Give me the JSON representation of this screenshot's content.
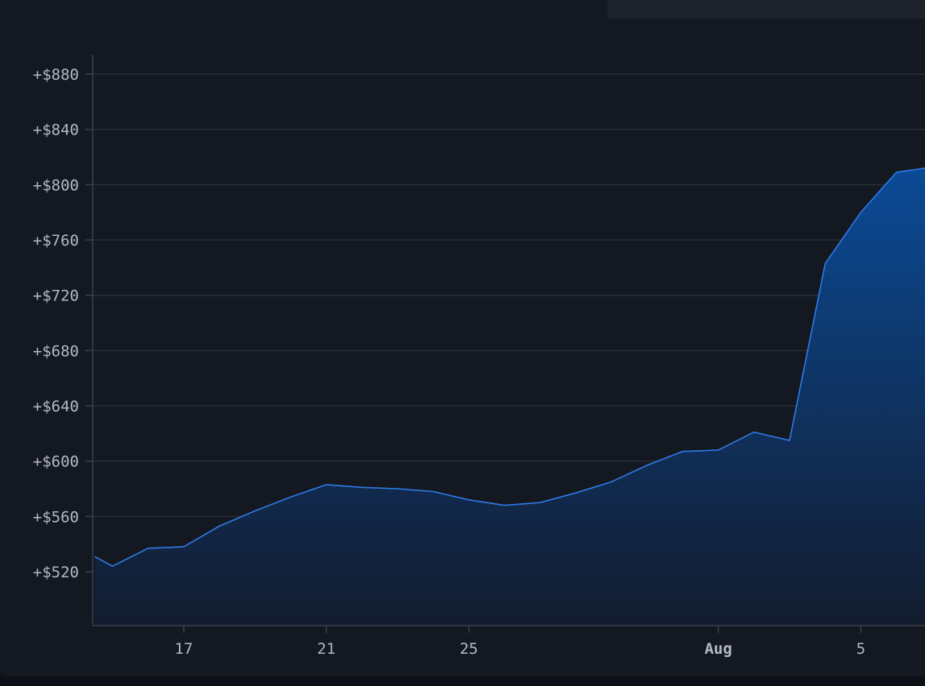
{
  "chart_data": {
    "type": "area",
    "title": "",
    "xlabel": "",
    "ylabel": "",
    "x_tick_labels": [
      {
        "label": "17",
        "x": "Jul 17",
        "bold": false
      },
      {
        "label": "21",
        "x": "Jul 21",
        "bold": false
      },
      {
        "label": "25",
        "x": "Jul 25",
        "bold": false
      },
      {
        "label": "Aug",
        "x": "Aug 1",
        "bold": true
      },
      {
        "label": "5",
        "x": "Aug 5",
        "bold": false
      }
    ],
    "y_tick_labels": [
      {
        "label": "+$520",
        "value": 520
      },
      {
        "label": "+$560",
        "value": 560
      },
      {
        "label": "+$600",
        "value": 600
      },
      {
        "label": "+$640",
        "value": 640
      },
      {
        "label": "+$680",
        "value": 680
      },
      {
        "label": "+$720",
        "value": 720
      },
      {
        "label": "+$760",
        "value": 760
      },
      {
        "label": "+$800",
        "value": 800
      },
      {
        "label": "+$840",
        "value": 840
      },
      {
        "label": "+$880",
        "value": 880
      }
    ],
    "ylim": [
      481,
      894
    ],
    "xlim": [
      "Jul 14.5",
      "Aug 6.8"
    ],
    "grid": true,
    "colors": {
      "line": "#2f7ae5",
      "fill_top": "#0b4a96",
      "fill_bottom": "#131c2e",
      "grid": "#2a2e36",
      "axis": "#3a3f4a"
    },
    "series": [
      {
        "x": [
          "Jul 14.5",
          "Jul 15",
          "Jul 16",
          "Jul 17",
          "Jul 18",
          "Jul 19",
          "Jul 20",
          "Jul 21",
          "Jul 22",
          "Jul 23",
          "Jul 24",
          "Jul 25",
          "Jul 26",
          "Jul 27",
          "Jul 28",
          "Jul 29",
          "Jul 30",
          "Jul 31",
          "Aug 1",
          "Aug 2",
          "Aug 3",
          "Aug 4",
          "Aug 5",
          "Aug 6",
          "Aug 6.8"
        ],
        "values": [
          531,
          524,
          537,
          538,
          553,
          564,
          574,
          583,
          581,
          580,
          578,
          572,
          568,
          570,
          577,
          585,
          597,
          607,
          608,
          621,
          615,
          743,
          780,
          809,
          812
        ]
      }
    ]
  }
}
